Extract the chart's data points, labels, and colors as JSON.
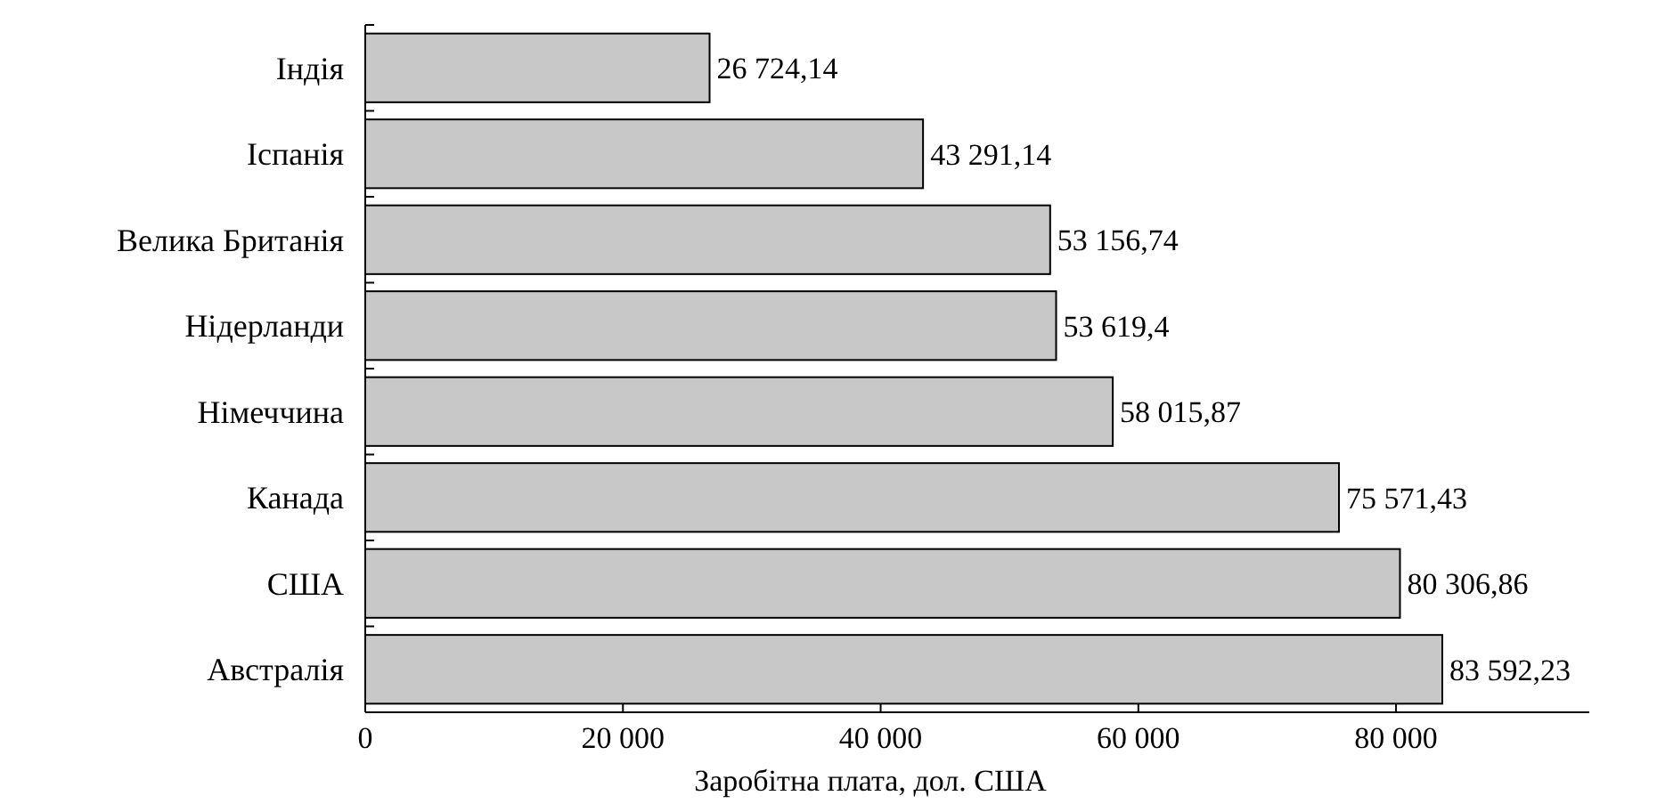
{
  "chart_data": {
    "type": "bar",
    "orientation": "horizontal",
    "xlabel": "Заробітна плата, дол. США",
    "categories": [
      "Індія",
      "Іспанія",
      "Велика Британія",
      "Нідерланди",
      "Німеччина",
      "Канада",
      "США",
      "Австралія"
    ],
    "values": [
      26724.14,
      43291.14,
      53156.74,
      53619.4,
      58015.87,
      75571.43,
      80306.86,
      83592.23
    ],
    "value_labels": [
      "26 724,14",
      "43 291,14",
      "53 156,74",
      "53 619,4",
      "58 015,87",
      "75 571,43",
      "80 306,86",
      "83 592,23"
    ],
    "color": "#c8c8c8",
    "xlim": [
      0,
      95000
    ],
    "xticks": [
      0,
      {
        "value": 20000,
        "label": "20 000"
      },
      {
        "value": 40000,
        "label": "40 000"
      },
      {
        "value": 60000,
        "label": "60 000"
      },
      {
        "value": 80000,
        "label": "80 000"
      }
    ],
    "grid": false
  }
}
